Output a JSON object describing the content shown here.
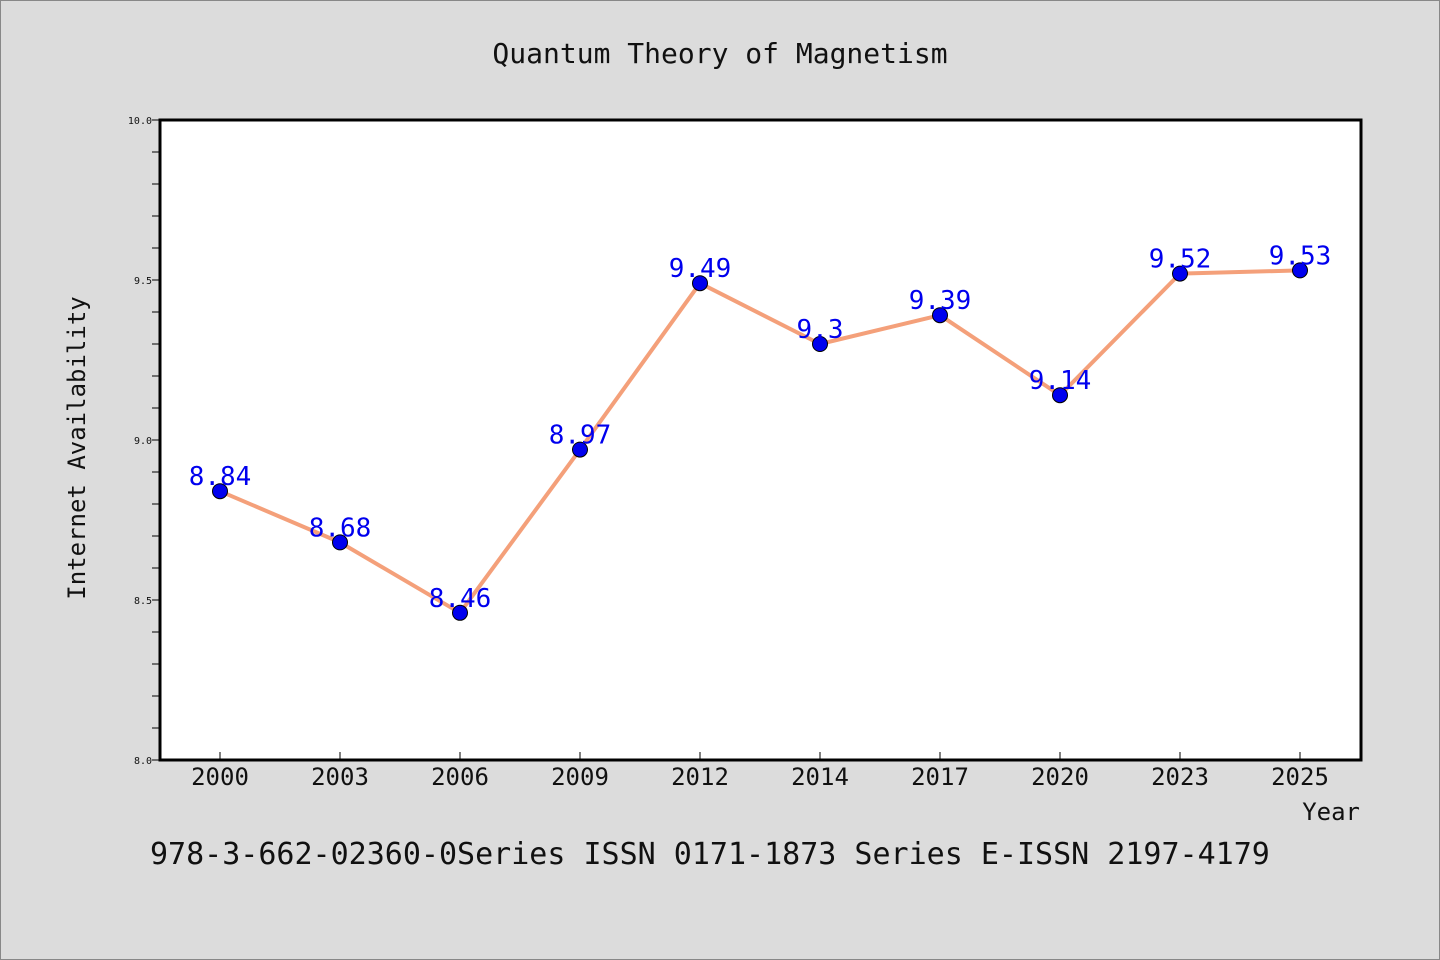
{
  "chart_data": {
    "type": "line",
    "title": "Quantum Theory of Magnetism",
    "xlabel": "Year",
    "ylabel": "Internet Availability",
    "categories": [
      "2000",
      "2003",
      "2006",
      "2009",
      "2012",
      "2014",
      "2017",
      "2020",
      "2023",
      "2025"
    ],
    "series": [
      {
        "values": [
          8.84,
          8.68,
          8.46,
          8.97,
          9.49,
          9.3,
          9.39,
          9.14,
          9.52,
          9.53
        ],
        "data_labels": [
          "8.84",
          "8.68",
          "8.46",
          "8.97",
          "9.49",
          "9.3",
          "9.39",
          "9.14",
          "9.52",
          "9.53"
        ],
        "line_color": "#f4a07a",
        "marker_color": "#0000ee"
      }
    ],
    "ylim": [
      8.0,
      10.0
    ],
    "y_ticks": [
      "8.0",
      "8.5",
      "9.0",
      "9.5",
      "10.0"
    ],
    "grid": false,
    "label_color": "#0000ee",
    "footer": "978-3-662-02360-0Series ISSN 0171-1873 Series E-ISSN 2197-4179"
  }
}
